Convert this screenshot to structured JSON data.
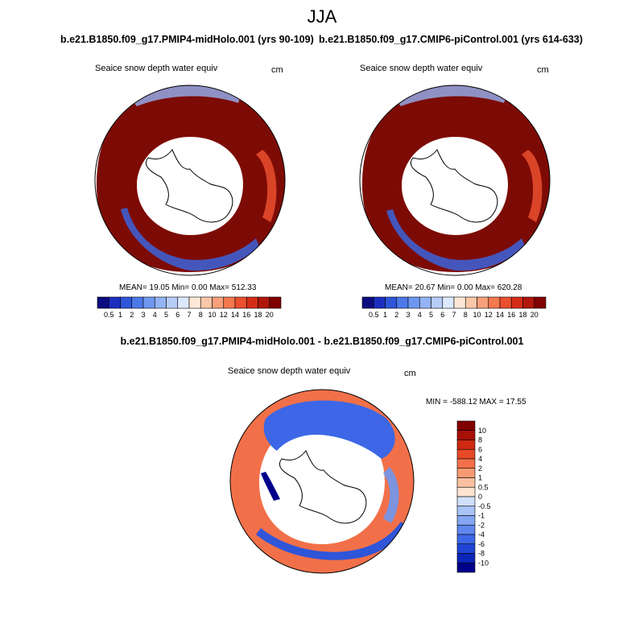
{
  "title": "JJA",
  "panels": [
    {
      "subtitle": "b.e21.B1850.f09_g17.PMIP4-midHolo.001 (yrs 90-109)",
      "variable": "Seaice snow depth water equiv",
      "units": "cm",
      "stats": "MEAN=  19.05  Min=   0.00  Max= 512.33"
    },
    {
      "subtitle": "b.e21.B1850.f09_g17.CMIP6-piControl.001 (yrs 614-633)",
      "variable": "Seaice snow depth water equiv",
      "units": "cm",
      "stats": "MEAN=  20.67  Min=   0.00  Max= 620.28"
    },
    {
      "subtitle": "b.e21.B1850.f09_g17.PMIP4-midHolo.001 - b.e21.B1850.f09_g17.CMIP6-piControl.001",
      "variable": "Seaice snow depth water equiv",
      "units": "cm",
      "stats": "MIN = -588.12 MAX =  17.55"
    }
  ],
  "colors": {
    "abs": [
      "#0c0c80",
      "#1c2ec0",
      "#2f55d9",
      "#4d78e8",
      "#6f97ef",
      "#93b3f4",
      "#b6cdf8",
      "#dce8fc",
      "#fde8d8",
      "#fbc7a9",
      "#f8a07b",
      "#f47850",
      "#ea4f2e",
      "#d32d17",
      "#b0170b",
      "#800000"
    ],
    "diff": [
      "#00008b",
      "#0b25b8",
      "#1f45d5",
      "#3d67e6",
      "#5f87ee",
      "#84a6f3",
      "#a9c3f7",
      "#d0e0fb",
      "#fde3d0",
      "#fac0a0",
      "#f79a72",
      "#f27049",
      "#e74927",
      "#ce2a12",
      "#a80f06",
      "#800000"
    ]
  },
  "chart_data": [
    {
      "type": "heatmap",
      "projection": "south-polar-stereographic",
      "title": "Seaice snow depth water equiv",
      "units": "cm",
      "colorbar": {
        "orientation": "horizontal",
        "ticks": [
          "0.5",
          "1",
          "2",
          "3",
          "4",
          "5",
          "6",
          "7",
          "8",
          "10",
          "12",
          "14",
          "16",
          "18",
          "20"
        ]
      },
      "mean": 19.05,
      "min": 0.0,
      "max": 512.33
    },
    {
      "type": "heatmap",
      "projection": "south-polar-stereographic",
      "title": "Seaice snow depth water equiv",
      "units": "cm",
      "colorbar": {
        "orientation": "horizontal",
        "ticks": [
          "0.5",
          "1",
          "2",
          "3",
          "4",
          "5",
          "6",
          "7",
          "8",
          "10",
          "12",
          "14",
          "16",
          "18",
          "20"
        ]
      },
      "mean": 20.67,
      "min": 0.0,
      "max": 620.28
    },
    {
      "type": "heatmap",
      "projection": "south-polar-stereographic",
      "title": "Seaice snow depth water equiv",
      "units": "cm",
      "colorbar": {
        "orientation": "vertical",
        "ticks": [
          "10",
          "8",
          "6",
          "4",
          "2",
          "1",
          "0.5",
          "0",
          "-0.5",
          "-1",
          "-2",
          "-4",
          "-6",
          "-8",
          "-10"
        ]
      },
      "min": -588.12,
      "max": 17.55
    }
  ]
}
